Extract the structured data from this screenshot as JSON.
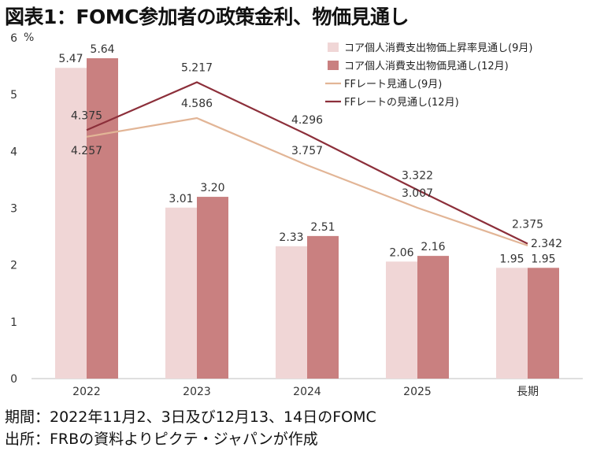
{
  "title": "図表1：FOMC参加者の政策金利、物価見通し",
  "footnotes": [
    "期間：2022年11月2、3日及び12月13、14日のFOMC",
    "出所：FRBの資料よりピクテ・ジャパンが作成"
  ],
  "chart_data": {
    "type": "bar",
    "categories": [
      "2022",
      "2023",
      "2024",
      "2025",
      "長期"
    ],
    "ylabel": "%",
    "ylim": [
      0,
      6
    ],
    "yticks": [
      0,
      1,
      2,
      3,
      4,
      5,
      6
    ],
    "grid": false,
    "legend_position": "top-right",
    "bar_series": [
      {
        "name": "コア個人消費支出物価上昇率見通し(9月)",
        "values": [
          5.47,
          3.01,
          2.33,
          2.06,
          1.95
        ],
        "labels": [
          "5.47",
          "3.01",
          "2.33",
          "2.06",
          "1.95"
        ],
        "color": "#f0d6d6"
      },
      {
        "name": "コア個人消費支出物価見通し(12月)",
        "values": [
          5.64,
          3.2,
          2.51,
          2.16,
          1.95
        ],
        "labels": [
          "5.64",
          "3.20",
          "2.51",
          "2.16",
          "1.95"
        ],
        "color": "#c98080"
      }
    ],
    "line_series": [
      {
        "name": "FFレート見通し(9月)",
        "values": [
          4.257,
          4.586,
          3.757,
          3.007,
          2.342
        ],
        "labels": [
          "4.257",
          "4.586",
          "3.757",
          "3.007",
          "2.342"
        ],
        "color": "#e2b596"
      },
      {
        "name": "FFレートの見通し(12月)",
        "values": [
          4.375,
          5.217,
          4.296,
          3.322,
          2.375
        ],
        "labels": [
          "4.375",
          "5.217",
          "4.296",
          "3.322",
          "2.375"
        ],
        "color": "#8c2f3a"
      }
    ]
  }
}
